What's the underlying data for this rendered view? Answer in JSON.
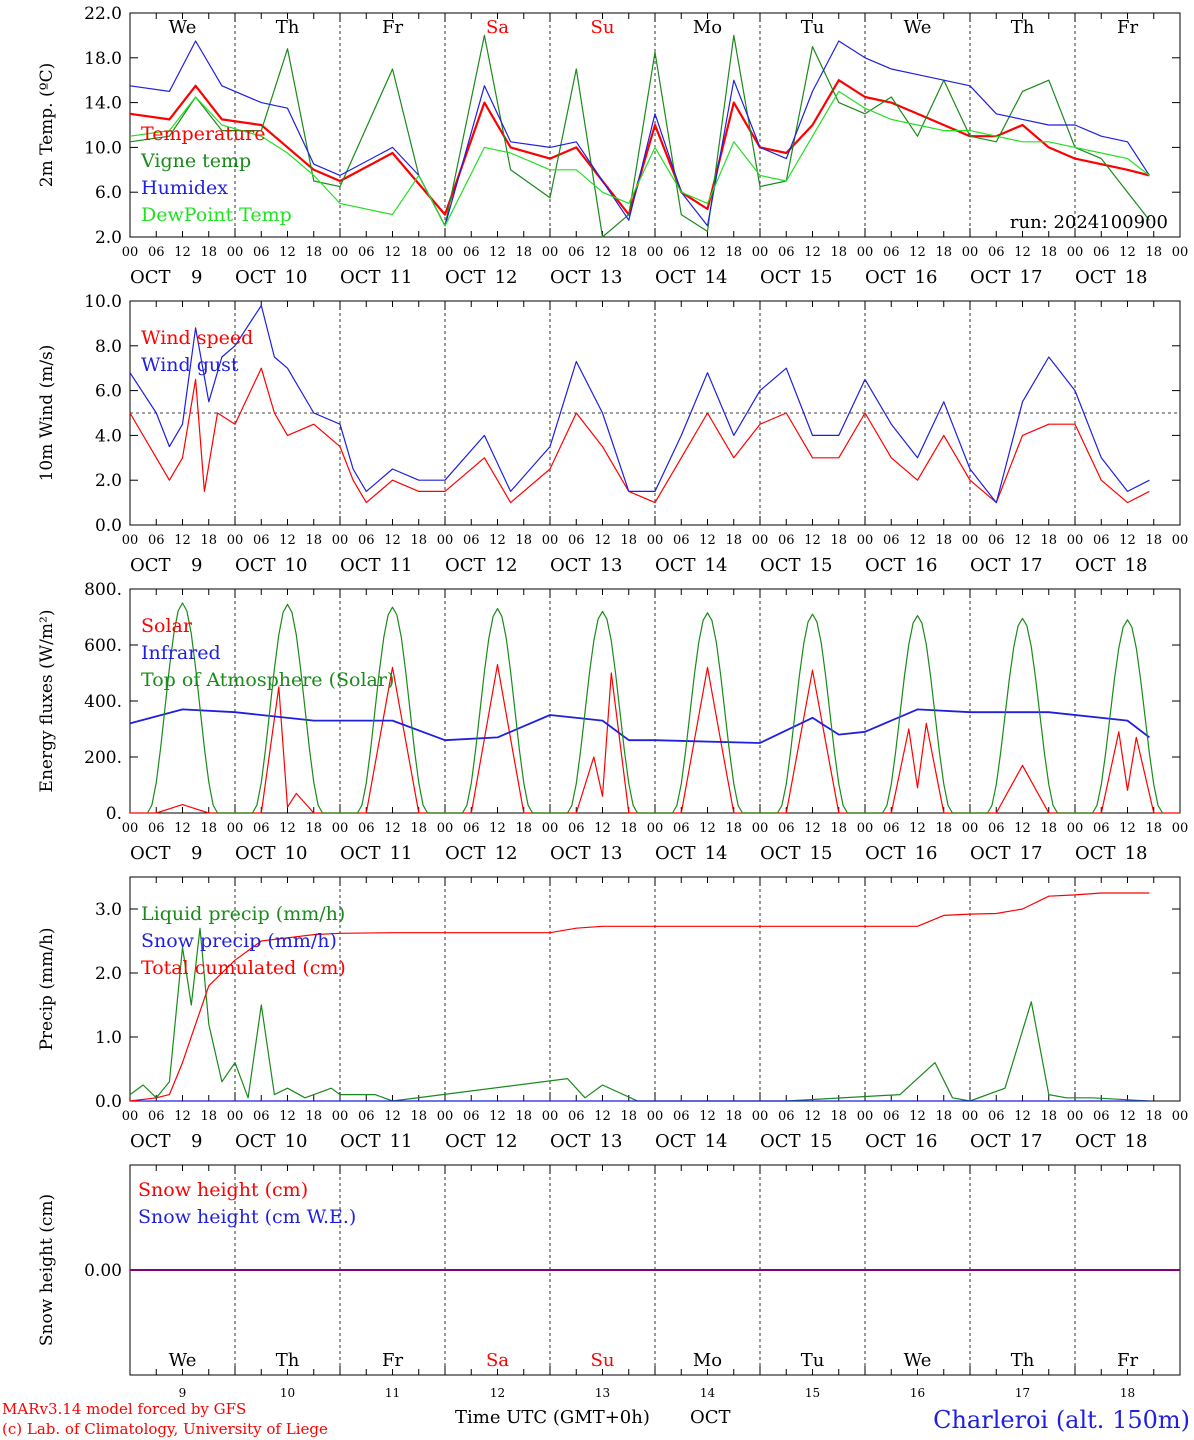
{
  "days": [
    "9",
    "10",
    "11",
    "12",
    "13",
    "14",
    "15",
    "16",
    "17",
    "18"
  ],
  "month": "OCT",
  "hour_labels": [
    "00",
    "06",
    "12",
    "18"
  ],
  "weekdays_top": [
    "We",
    "Th",
    "Fr",
    "Sa",
    "Su",
    "Mo",
    "Tu",
    "We",
    "Th",
    "Fr"
  ],
  "weekend_indices": [
    3,
    4
  ],
  "run_label": "run: 2024100900",
  "footer": {
    "model": "MARv3.14 model forced by GFS",
    "lab": "(c) Lab. of Climatology, University of Liege",
    "time_axis": "Time UTC (GMT+0h)",
    "month_axis": "OCT",
    "station": "Charleroi (alt. 150m)"
  },
  "colors": {
    "red": "#ff0000",
    "green": "#1a8a1a",
    "blue": "#1f1fe0",
    "lightgreen": "#22e022",
    "weekend": "#ff0000",
    "purple": "#800080"
  },
  "chart_data": [
    {
      "type": "line",
      "ylabel": "2m Temp. (ºC)",
      "ylim": [
        2.0,
        22.0
      ],
      "yticks": [
        "2.0",
        "6.0",
        "10.0",
        "14.0",
        "18.0",
        "22.0"
      ],
      "x_unit": "hours since OCT 9 00 UTC",
      "legend": [
        "Temperature",
        "Vigne temp",
        "Humidex",
        "DewPoint Temp"
      ],
      "series": [
        {
          "name": "Temperature",
          "color": "red",
          "x": [
            0,
            9,
            15,
            21,
            30,
            42,
            48,
            60,
            72,
            81,
            87,
            96,
            102,
            108,
            114,
            120,
            126,
            132,
            138,
            144,
            150,
            156,
            162,
            168,
            174,
            180,
            186,
            192,
            198,
            204,
            210,
            216,
            222,
            228,
            233
          ],
          "values": [
            13.0,
            12.5,
            15.5,
            12.5,
            12.0,
            8.0,
            7.0,
            9.5,
            4.0,
            14.0,
            10.0,
            9.0,
            10.0,
            7.0,
            4.0,
            12.0,
            6.0,
            4.5,
            14.0,
            10.0,
            9.5,
            12.0,
            16.0,
            14.5,
            14.0,
            13.0,
            12.0,
            11.0,
            11.0,
            12.0,
            10.0,
            9.0,
            8.5,
            8.0,
            7.5
          ]
        },
        {
          "name": "Vigne temp",
          "color": "green",
          "x": [
            0,
            9,
            15,
            21,
            30,
            36,
            42,
            48,
            60,
            66,
            72,
            81,
            87,
            96,
            102,
            108,
            114,
            120,
            126,
            132,
            138,
            144,
            150,
            156,
            162,
            168,
            174,
            180,
            186,
            192,
            198,
            204,
            210,
            216,
            222,
            228,
            233
          ],
          "values": [
            10.5,
            11.0,
            14.5,
            11.5,
            11.5,
            18.8,
            7.0,
            6.5,
            17.0,
            7.5,
            3.0,
            20.0,
            8.0,
            5.5,
            17.0,
            2.0,
            4.0,
            18.5,
            4.0,
            2.5,
            20.0,
            6.5,
            7.0,
            19.0,
            14.0,
            13.0,
            14.5,
            11.0,
            16.0,
            11.0,
            10.5,
            15.0,
            16.0,
            10.0,
            9.0,
            6.0,
            3.5
          ]
        },
        {
          "name": "Humidex",
          "color": "blue",
          "x": [
            0,
            9,
            15,
            21,
            30,
            36,
            42,
            48,
            60,
            66,
            72,
            81,
            87,
            96,
            102,
            108,
            114,
            120,
            126,
            132,
            138,
            144,
            150,
            156,
            162,
            168,
            174,
            180,
            186,
            192,
            198,
            204,
            210,
            216,
            222,
            228,
            233
          ],
          "values": [
            15.5,
            15.0,
            19.5,
            15.5,
            14.0,
            13.5,
            8.5,
            7.5,
            10.0,
            7.5,
            3.0,
            15.5,
            10.5,
            10.0,
            10.5,
            7.0,
            3.5,
            13.0,
            6.0,
            3.0,
            16.0,
            10.0,
            9.0,
            15.0,
            19.5,
            18.0,
            17.0,
            16.5,
            16.0,
            15.5,
            13.0,
            12.5,
            12.0,
            12.0,
            11.0,
            10.5,
            7.5
          ]
        },
        {
          "name": "DewPoint Temp",
          "color": "lightgreen",
          "x": [
            0,
            9,
            15,
            21,
            30,
            36,
            42,
            48,
            60,
            66,
            72,
            81,
            87,
            96,
            102,
            108,
            114,
            120,
            126,
            132,
            138,
            144,
            150,
            156,
            162,
            168,
            174,
            180,
            186,
            192,
            198,
            204,
            210,
            216,
            222,
            228,
            233
          ],
          "values": [
            11.0,
            11.5,
            14.5,
            12.0,
            11.0,
            9.5,
            7.5,
            5.0,
            4.0,
            7.5,
            3.0,
            10.0,
            9.5,
            8.0,
            8.0,
            6.0,
            5.0,
            10.0,
            6.0,
            5.0,
            10.5,
            7.5,
            7.0,
            11.0,
            15.0,
            13.5,
            12.5,
            12.0,
            11.5,
            11.5,
            11.0,
            10.5,
            10.5,
            10.0,
            9.5,
            9.0,
            7.5
          ]
        }
      ]
    },
    {
      "type": "line",
      "ylabel": "10m Wind (m/s)",
      "ylim": [
        0.0,
        10.0
      ],
      "yticks": [
        "0.0",
        "2.0",
        "4.0",
        "6.0",
        "8.0",
        "10.0"
      ],
      "reference_line": 5.0,
      "legend": [
        "Wind speed",
        "Wind gust"
      ],
      "series": [
        {
          "name": "Wind speed",
          "color": "red",
          "x": [
            0,
            6,
            9,
            12,
            15,
            17,
            20,
            24,
            30,
            33,
            36,
            42,
            48,
            51,
            54,
            60,
            66,
            72,
            81,
            87,
            96,
            102,
            108,
            114,
            120,
            126,
            132,
            138,
            144,
            150,
            156,
            162,
            168,
            174,
            180,
            186,
            192,
            198,
            204,
            210,
            216,
            222,
            228,
            233
          ],
          "values": [
            5.0,
            3.0,
            2.0,
            3.0,
            6.5,
            1.5,
            5.0,
            4.5,
            7.0,
            5.0,
            4.0,
            4.5,
            3.5,
            2.0,
            1.0,
            2.0,
            1.5,
            1.5,
            3.0,
            1.0,
            2.5,
            5.0,
            3.5,
            1.5,
            1.0,
            3.0,
            5.0,
            3.0,
            4.5,
            5.0,
            3.0,
            3.0,
            5.0,
            3.0,
            2.0,
            4.0,
            2.0,
            1.0,
            4.0,
            4.5,
            4.5,
            2.0,
            1.0,
            1.5
          ]
        },
        {
          "name": "Wind gust",
          "color": "blue",
          "x": [
            0,
            6,
            9,
            12,
            15,
            18,
            21,
            24,
            30,
            33,
            36,
            42,
            48,
            51,
            54,
            60,
            66,
            72,
            81,
            87,
            96,
            102,
            108,
            114,
            120,
            126,
            132,
            138,
            144,
            150,
            156,
            162,
            168,
            174,
            180,
            186,
            192,
            198,
            204,
            210,
            216,
            222,
            228,
            233
          ],
          "values": [
            6.8,
            5.0,
            3.5,
            4.5,
            8.8,
            5.5,
            7.5,
            8.0,
            9.8,
            7.5,
            7.0,
            5.0,
            4.5,
            2.5,
            1.5,
            2.5,
            2.0,
            2.0,
            4.0,
            1.5,
            3.5,
            7.3,
            5.0,
            1.5,
            1.5,
            4.0,
            6.8,
            4.0,
            6.0,
            7.0,
            4.0,
            4.0,
            6.5,
            4.5,
            3.0,
            5.5,
            2.5,
            1.0,
            5.5,
            7.5,
            6.0,
            3.0,
            1.5,
            2.0
          ]
        }
      ]
    },
    {
      "type": "line",
      "ylabel": "Energy fluxes (W/m²)",
      "ylim": [
        0,
        800
      ],
      "yticks": [
        "0.",
        "200.",
        "400.",
        "600.",
        "800."
      ],
      "legend": [
        "Solar",
        "Infrared",
        "Top of Atmosphere (Solar)"
      ],
      "series": [
        {
          "name": "Solar",
          "color": "red",
          "peaks": [
            {
              "day": 0,
              "values": [
                30
              ]
            },
            {
              "day": 1,
              "values": [
                450,
                70
              ]
            },
            {
              "day": 2,
              "values": [
                520
              ]
            },
            {
              "day": 3,
              "values": [
                530
              ]
            },
            {
              "day": 4,
              "values": [
                200,
                500
              ]
            },
            {
              "day": 5,
              "values": [
                520
              ]
            },
            {
              "day": 6,
              "values": [
                510
              ]
            },
            {
              "day": 7,
              "values": [
                300,
                320
              ]
            },
            {
              "day": 8,
              "values": [
                170
              ]
            },
            {
              "day": 9,
              "values": [
                290,
                270
              ]
            }
          ]
        },
        {
          "name": "Infrared",
          "color": "blue",
          "x": [
            0,
            12,
            24,
            42,
            60,
            72,
            84,
            96,
            108,
            114,
            120,
            144,
            156,
            162,
            168,
            180,
            192,
            210,
            228,
            233
          ],
          "values": [
            320,
            370,
            360,
            330,
            330,
            260,
            270,
            350,
            330,
            260,
            260,
            250,
            340,
            280,
            290,
            370,
            360,
            360,
            330,
            270
          ]
        },
        {
          "name": "Top of Atmosphere (Solar)",
          "color": "green",
          "daily_peaks": [
            750,
            745,
            735,
            730,
            720,
            715,
            710,
            705,
            695,
            690
          ]
        }
      ]
    },
    {
      "type": "line",
      "ylabel": "Precip (mm/h)",
      "ylim": [
        0.0,
        3.5
      ],
      "yticks": [
        "0.0",
        "1.0",
        "2.0",
        "3.0"
      ],
      "legend": [
        "Liquid precip (mm/h)",
        "Snow precip (mm/h)",
        "Total cumulated (cm)"
      ],
      "series": [
        {
          "name": "Liquid precip (mm/h)",
          "color": "green",
          "x": [
            0,
            3,
            6,
            9,
            12,
            14,
            16,
            18,
            21,
            24,
            27,
            30,
            33,
            36,
            40,
            46,
            48,
            56,
            60,
            100,
            104,
            108,
            116,
            150,
            176,
            184,
            188,
            192,
            200,
            206,
            210,
            214,
            220,
            233
          ],
          "values": [
            0.1,
            0.25,
            0.05,
            0.3,
            2.4,
            1.5,
            2.7,
            1.2,
            0.3,
            0.6,
            0.05,
            1.5,
            0.1,
            0.2,
            0.05,
            0.2,
            0.1,
            0.1,
            0.0,
            0.35,
            0.05,
            0.25,
            0.0,
            0.0,
            0.1,
            0.6,
            0.05,
            0.0,
            0.2,
            1.55,
            0.1,
            0.05,
            0.05,
            0.0
          ]
        },
        {
          "name": "Snow precip (mm/h)",
          "color": "blue",
          "x": [
            0,
            233
          ],
          "values": [
            0,
            0
          ]
        },
        {
          "name": "Total cumulated (cm)",
          "color": "red",
          "x": [
            0,
            6,
            9,
            12,
            15,
            18,
            21,
            24,
            30,
            36,
            42,
            48,
            60,
            96,
            102,
            108,
            120,
            144,
            180,
            186,
            192,
            198,
            204,
            210,
            216,
            222,
            233
          ],
          "values": [
            0.0,
            0.05,
            0.1,
            0.6,
            1.2,
            1.8,
            2.0,
            2.2,
            2.5,
            2.55,
            2.6,
            2.62,
            2.63,
            2.63,
            2.7,
            2.73,
            2.73,
            2.73,
            2.73,
            2.9,
            2.92,
            2.93,
            3.0,
            3.2,
            3.22,
            3.25,
            3.25
          ]
        }
      ]
    },
    {
      "type": "line",
      "ylabel": "Snow height (cm)",
      "yticks": [
        "0.00"
      ],
      "legend": [
        "Snow height (cm)",
        "Snow height (cm W.E.)"
      ],
      "series": [
        {
          "name": "Snow height (cm)",
          "color": "red",
          "x": [
            0,
            233
          ],
          "values": [
            0,
            0
          ]
        },
        {
          "name": "Snow height (cm W.E.)",
          "color": "blue",
          "x": [
            0,
            233
          ],
          "values": [
            0,
            0
          ]
        }
      ]
    }
  ]
}
